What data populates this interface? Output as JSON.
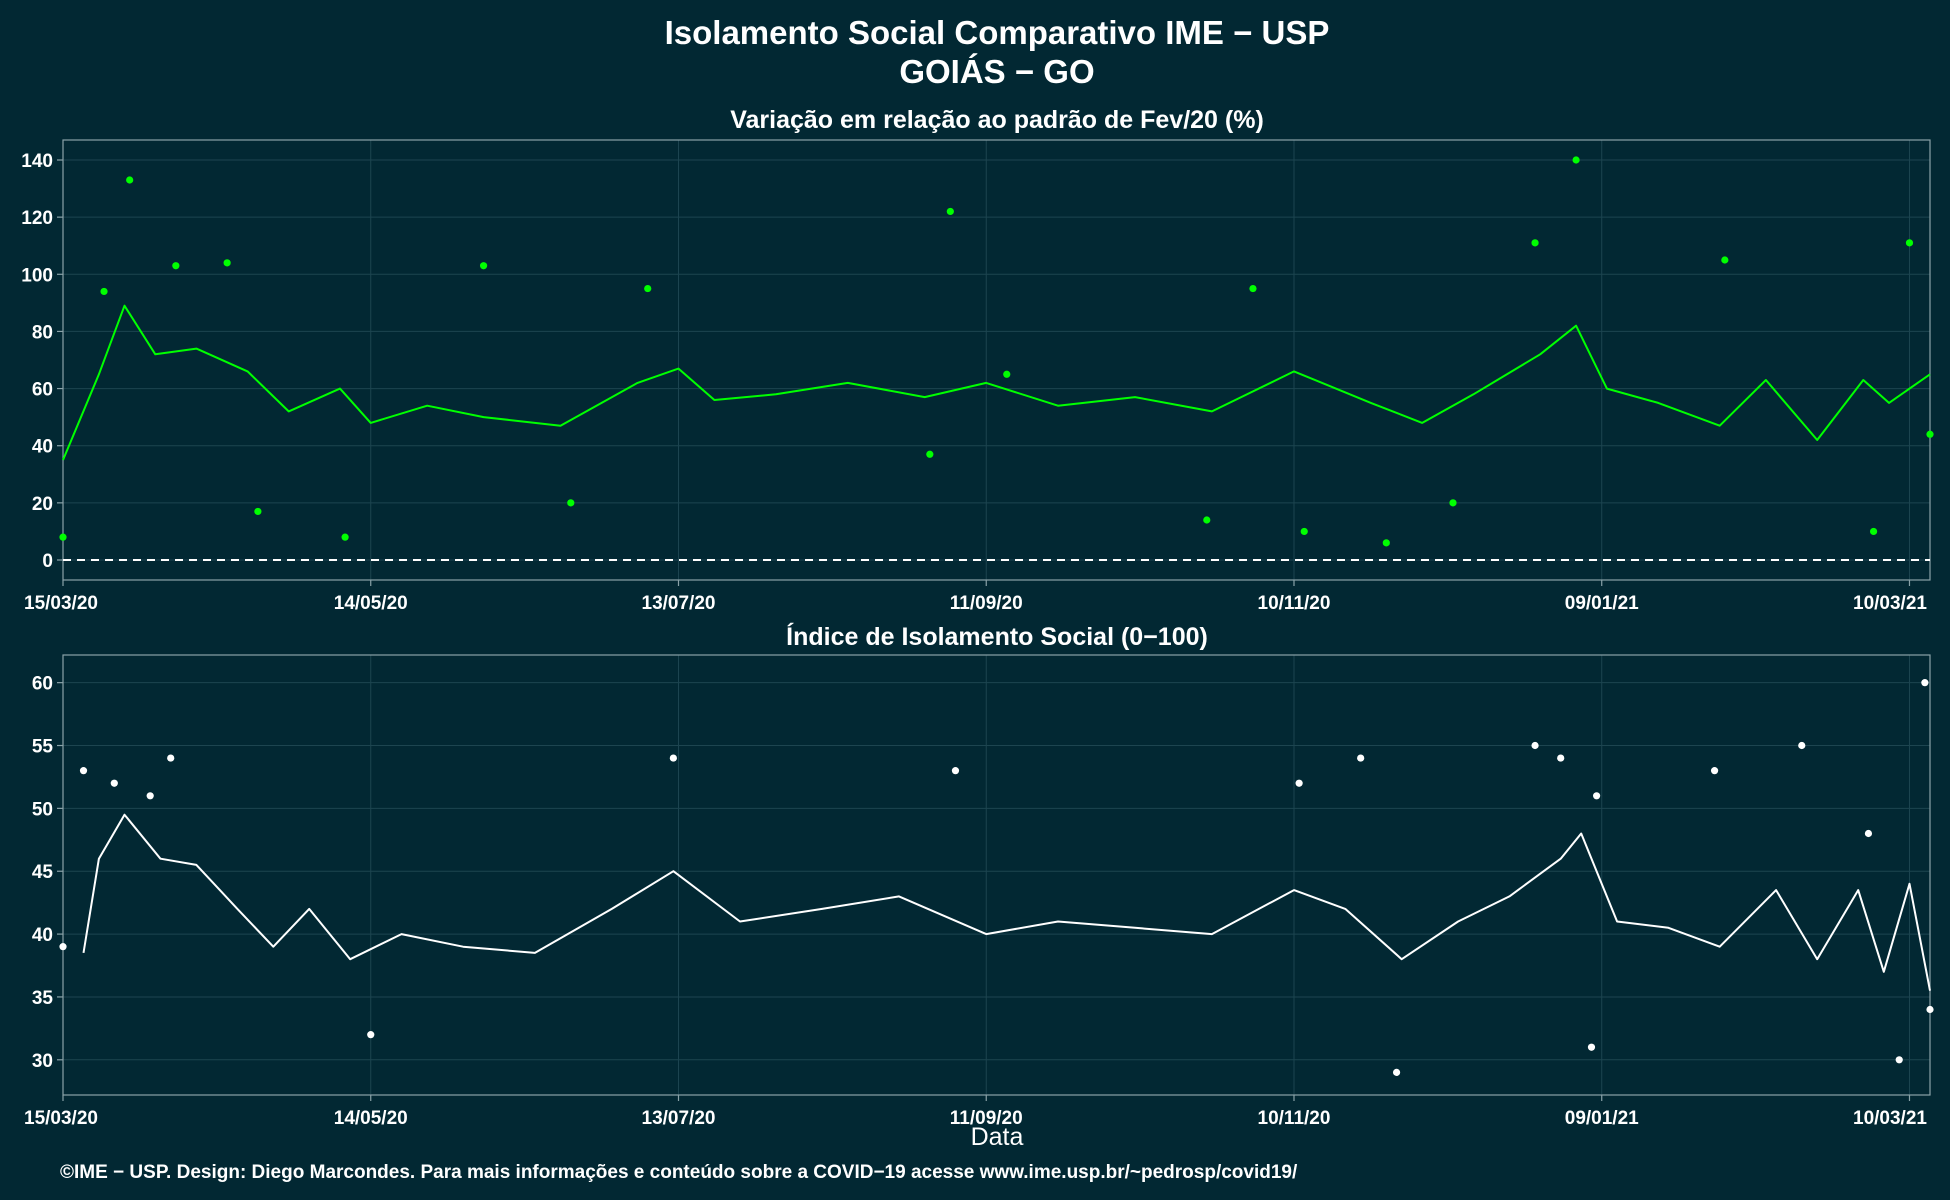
{
  "title_line1": "Isolamento Social Comparativo IME − USP",
  "title_line2": "GOIÁS − GO",
  "xlabel": "Data",
  "footer": "©IME − USP. Design: Diego Marcondes. Para mais informações e conteúdo sobre a COVID−19 acesse www.ime.usp.br/~pedrosp/covid19/",
  "colors": {
    "background": "#022833",
    "top_series": "#00ff00",
    "bottom_series": "#ffffff",
    "grid": "#1d4550",
    "axis": "#8aa2a8"
  },
  "chart_data": [
    {
      "type": "scatter",
      "title": "Variação em relação ao padrão de Fev/20 (%)",
      "x_start": "15/03/20",
      "x_end": "14/03/21",
      "xticks": [
        "15/03/20",
        "14/05/20",
        "13/07/20",
        "11/09/20",
        "10/11/20",
        "09/01/21",
        "10/03/21"
      ],
      "ylim": [
        -7,
        147
      ],
      "yticks": [
        0,
        20,
        40,
        60,
        80,
        100,
        120,
        140
      ],
      "reference_line": 0,
      "grid": true,
      "series": [
        {
          "style": "points",
          "x": [
            "15/03/20",
            "23/03/20",
            "28/03/20",
            "06/04/20",
            "16/04/20",
            "22/04/20",
            "09/05/20",
            "05/06/20",
            "22/06/20",
            "07/07/20",
            "31/08/20",
            "04/09/20",
            "15/09/20",
            "24/10/20",
            "02/11/20",
            "12/11/20",
            "28/11/20",
            "11/12/20",
            "27/12/20",
            "04/01/21",
            "02/02/21",
            "03/03/21",
            "10/03/21",
            "14/03/21"
          ],
          "y": [
            8,
            94,
            133,
            103,
            104,
            17,
            8,
            103,
            20,
            95,
            37,
            122,
            65,
            14,
            95,
            10,
            6,
            20,
            111,
            140,
            105,
            10,
            111,
            44
          ]
        },
        {
          "style": "moving-average",
          "x": [
            "15/03/20",
            "22/03/20",
            "27/03/20",
            "02/04/20",
            "10/04/20",
            "20/04/20",
            "28/04/20",
            "08/05/20",
            "14/05/20",
            "25/05/20",
            "05/06/20",
            "20/06/20",
            "05/07/20",
            "13/07/20",
            "20/07/20",
            "01/08/20",
            "15/08/20",
            "30/08/20",
            "11/09/20",
            "25/09/20",
            "10/10/20",
            "25/10/20",
            "10/11/20",
            "25/11/20",
            "05/12/20",
            "15/12/20",
            "28/12/20",
            "04/01/21",
            "10/01/21",
            "20/01/21",
            "01/02/21",
            "10/02/21",
            "20/02/21",
            "01/03/21",
            "06/03/21",
            "14/03/21"
          ],
          "y": [
            35,
            65,
            89,
            72,
            74,
            66,
            52,
            60,
            48,
            54,
            50,
            47,
            62,
            67,
            56,
            58,
            62,
            57,
            62,
            54,
            57,
            52,
            66,
            55,
            48,
            58,
            72,
            82,
            60,
            55,
            47,
            63,
            42,
            63,
            55,
            65
          ]
        }
      ]
    },
    {
      "type": "scatter",
      "title": "Índice de Isolamento Social (0−100)",
      "x_start": "15/03/20",
      "x_end": "14/03/21",
      "xticks": [
        "15/03/20",
        "14/05/20",
        "13/07/20",
        "11/09/20",
        "10/11/20",
        "09/01/21",
        "10/03/21"
      ],
      "ylim": [
        27.2,
        62.2
      ],
      "yticks": [
        30,
        35,
        40,
        45,
        50,
        55,
        60
      ],
      "grid": true,
      "series": [
        {
          "style": "points",
          "x": [
            "15/03/20",
            "19/03/20",
            "25/03/20",
            "01/04/20",
            "05/04/20",
            "14/05/20",
            "12/07/20",
            "05/09/20",
            "11/11/20",
            "23/11/20",
            "30/11/20",
            "27/12/20",
            "01/01/21",
            "07/01/21",
            "08/01/21",
            "31/01/21",
            "17/02/21",
            "02/03/21",
            "08/03/21",
            "13/03/21",
            "14/03/21"
          ],
          "y": [
            39,
            53,
            52,
            51,
            54,
            32,
            54,
            53,
            52,
            54,
            29,
            55,
            54,
            31,
            51,
            53,
            55,
            48,
            30,
            60,
            34
          ]
        },
        {
          "style": "moving-average",
          "x": [
            "19/03/20",
            "22/03/20",
            "27/03/20",
            "03/04/20",
            "10/04/20",
            "18/04/20",
            "25/04/20",
            "02/05/20",
            "10/05/20",
            "20/05/20",
            "01/06/20",
            "15/06/20",
            "30/06/20",
            "12/07/20",
            "25/07/20",
            "10/08/20",
            "25/08/20",
            "11/09/20",
            "25/09/20",
            "10/10/20",
            "25/10/20",
            "10/11/20",
            "20/11/20",
            "01/12/20",
            "12/12/20",
            "22/12/20",
            "01/01/21",
            "05/01/21",
            "12/01/21",
            "22/01/21",
            "01/02/21",
            "12/02/21",
            "20/02/21",
            "28/02/21",
            "05/03/21",
            "10/03/21",
            "14/03/21"
          ],
          "y": [
            38.5,
            46,
            49.5,
            46,
            45.5,
            42,
            39,
            42,
            38,
            40,
            39,
            38.5,
            42,
            45,
            41,
            42,
            43,
            40,
            41,
            40.5,
            40,
            43.5,
            42,
            38,
            41,
            43,
            46,
            48,
            41,
            40.5,
            39,
            43.5,
            38,
            43.5,
            37,
            44,
            35.5
          ]
        }
      ]
    }
  ]
}
